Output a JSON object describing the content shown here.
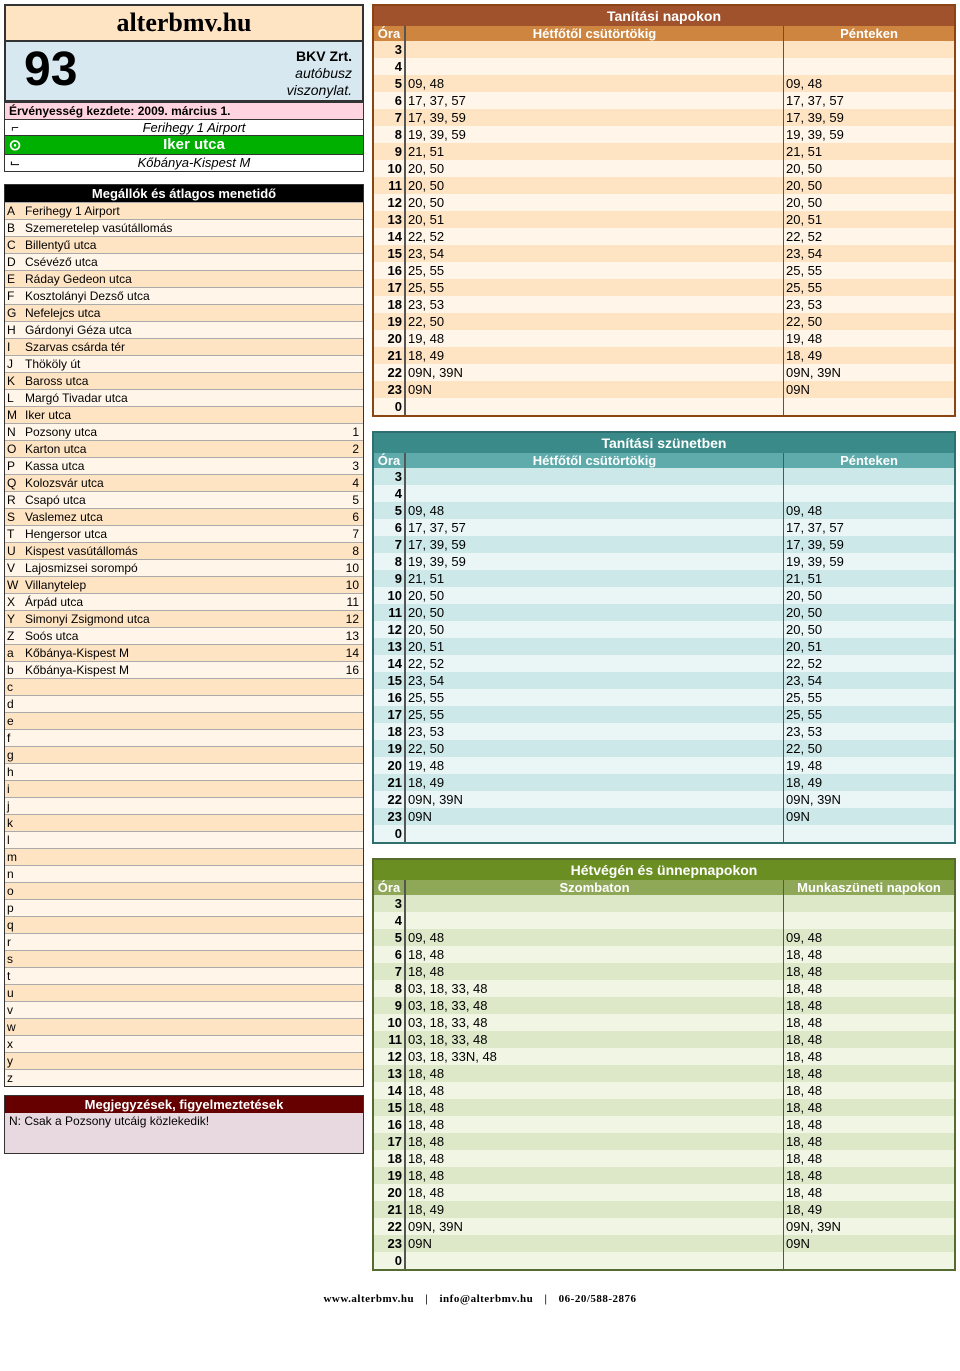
{
  "brand": "alterbmv.hu",
  "route_number": "93",
  "operator": "BKV Zrt.",
  "route_meta1": "autóbusz",
  "route_meta2": "viszonylat.",
  "validity": "Érvényesség kezdete:  2009. március 1.",
  "endpoints": {
    "start": {
      "symbol": "⌐",
      "name": "Ferihegy 1 Airport"
    },
    "current": {
      "symbol": "⊙",
      "name": "Iker utca"
    },
    "end": {
      "symbol": "⌙",
      "name": "Kőbánya-Kispest M"
    }
  },
  "stops_title": "Megállók és átlagos menetidő",
  "stops": [
    {
      "l": "A",
      "n": "Ferihegy 1 Airport",
      "m": ""
    },
    {
      "l": "B",
      "n": "Szemeretelep vasútállomás",
      "m": ""
    },
    {
      "l": "C",
      "n": "Billentyű utca",
      "m": ""
    },
    {
      "l": "D",
      "n": "Csévéző utca",
      "m": ""
    },
    {
      "l": "E",
      "n": "Ráday Gedeon utca",
      "m": ""
    },
    {
      "l": "F",
      "n": "Kosztolányi Dezső utca",
      "m": ""
    },
    {
      "l": "G",
      "n": "Nefelejcs utca",
      "m": ""
    },
    {
      "l": "H",
      "n": "Gárdonyi Géza utca",
      "m": ""
    },
    {
      "l": "I",
      "n": "Szarvas csárda tér",
      "m": ""
    },
    {
      "l": "J",
      "n": "Thököly út",
      "m": ""
    },
    {
      "l": "K",
      "n": "Baross utca",
      "m": ""
    },
    {
      "l": "L",
      "n": "Margó Tivadar utca",
      "m": ""
    },
    {
      "l": "M",
      "n": "Iker utca",
      "m": ""
    },
    {
      "l": "N",
      "n": "Pozsony utca",
      "m": "1"
    },
    {
      "l": "O",
      "n": "Karton utca",
      "m": "2"
    },
    {
      "l": "P",
      "n": "Kassa utca",
      "m": "3"
    },
    {
      "l": "Q",
      "n": "Kolozsvár utca",
      "m": "4"
    },
    {
      "l": "R",
      "n": "Csapó utca",
      "m": "5"
    },
    {
      "l": "S",
      "n": "Vaslemez utca",
      "m": "6"
    },
    {
      "l": "T",
      "n": "Hengersor utca",
      "m": "7"
    },
    {
      "l": "U",
      "n": "Kispest vasútállomás",
      "m": "8"
    },
    {
      "l": "V",
      "n": "Lajosmizsei sorompó",
      "m": "10"
    },
    {
      "l": "W",
      "n": "Villanytelep",
      "m": "10"
    },
    {
      "l": "X",
      "n": "Árpád utca",
      "m": "11"
    },
    {
      "l": "Y",
      "n": "Simonyi Zsigmond utca",
      "m": "12"
    },
    {
      "l": "Z",
      "n": "Soós utca",
      "m": "13"
    },
    {
      "l": "a",
      "n": "Kőbánya-Kispest M",
      "m": "14"
    },
    {
      "l": "b",
      "n": "Kőbánya-Kispest M",
      "m": "16"
    },
    {
      "l": "c",
      "n": "",
      "m": ""
    },
    {
      "l": "d",
      "n": "",
      "m": ""
    },
    {
      "l": "e",
      "n": "",
      "m": ""
    },
    {
      "l": "f",
      "n": "",
      "m": ""
    },
    {
      "l": "g",
      "n": "",
      "m": ""
    },
    {
      "l": "h",
      "n": "",
      "m": ""
    },
    {
      "l": "i",
      "n": "",
      "m": ""
    },
    {
      "l": "j",
      "n": "",
      "m": ""
    },
    {
      "l": "k",
      "n": "",
      "m": ""
    },
    {
      "l": "l",
      "n": "",
      "m": ""
    },
    {
      "l": "m",
      "n": "",
      "m": ""
    },
    {
      "l": "n",
      "n": "",
      "m": ""
    },
    {
      "l": "o",
      "n": "",
      "m": ""
    },
    {
      "l": "p",
      "n": "",
      "m": ""
    },
    {
      "l": "q",
      "n": "",
      "m": ""
    },
    {
      "l": "r",
      "n": "",
      "m": ""
    },
    {
      "l": "s",
      "n": "",
      "m": ""
    },
    {
      "l": "t",
      "n": "",
      "m": ""
    },
    {
      "l": "u",
      "n": "",
      "m": ""
    },
    {
      "l": "v",
      "n": "",
      "m": ""
    },
    {
      "l": "w",
      "n": "",
      "m": ""
    },
    {
      "l": "x",
      "n": "",
      "m": ""
    },
    {
      "l": "y",
      "n": "",
      "m": ""
    },
    {
      "l": "z",
      "n": "",
      "m": ""
    }
  ],
  "notes_title": "Megjegyzések, figyelmeztetések",
  "notes_body": "N: Csak a Pozsony utcáig közlekedik!",
  "timetables": [
    {
      "title": "Tanítási napokon",
      "head_ora": "Óra",
      "head_c1": "Hétfőtől csütörtökig",
      "head_c2": "Pénteken",
      "colors": {
        "border": "#8b4513",
        "title_bg": "#a0522d",
        "head_bg": "#cd853f",
        "row0": "#ffe4c4",
        "row1": "#fff5e8"
      },
      "rows": [
        {
          "h": "3",
          "c1": "",
          "c2": ""
        },
        {
          "h": "4",
          "c1": "",
          "c2": ""
        },
        {
          "h": "5",
          "c1": "09, 48",
          "c2": "09, 48"
        },
        {
          "h": "6",
          "c1": "17, 37, 57",
          "c2": "17, 37, 57"
        },
        {
          "h": "7",
          "c1": "17, 39, 59",
          "c2": "17, 39, 59"
        },
        {
          "h": "8",
          "c1": "19, 39, 59",
          "c2": "19, 39, 59"
        },
        {
          "h": "9",
          "c1": "21, 51",
          "c2": "21, 51"
        },
        {
          "h": "10",
          "c1": "20, 50",
          "c2": "20, 50"
        },
        {
          "h": "11",
          "c1": "20, 50",
          "c2": "20, 50"
        },
        {
          "h": "12",
          "c1": "20, 50",
          "c2": "20, 50"
        },
        {
          "h": "13",
          "c1": "20, 51",
          "c2": "20, 51"
        },
        {
          "h": "14",
          "c1": "22, 52",
          "c2": "22, 52"
        },
        {
          "h": "15",
          "c1": "23, 54",
          "c2": "23, 54"
        },
        {
          "h": "16",
          "c1": "25, 55",
          "c2": "25, 55"
        },
        {
          "h": "17",
          "c1": "25, 55",
          "c2": "25, 55"
        },
        {
          "h": "18",
          "c1": "23, 53",
          "c2": "23, 53"
        },
        {
          "h": "19",
          "c1": "22, 50",
          "c2": "22, 50"
        },
        {
          "h": "20",
          "c1": "19, 48",
          "c2": "19, 48"
        },
        {
          "h": "21",
          "c1": "18, 49",
          "c2": "18, 49"
        },
        {
          "h": "22",
          "c1": "09N, 39N",
          "c2": "09N, 39N"
        },
        {
          "h": "23",
          "c1": "09N",
          "c2": "09N"
        },
        {
          "h": "0",
          "c1": "",
          "c2": ""
        }
      ]
    },
    {
      "title": "Tanítási szünetben",
      "head_ora": "Óra",
      "head_c1": "Hétfőtől csütörtökig",
      "head_c2": "Pénteken",
      "colors": {
        "border": "#2f6f6f",
        "title_bg": "#3a8a8a",
        "head_bg": "#5faaaa",
        "row0": "#cde8e8",
        "row1": "#eaf5f5"
      },
      "rows": [
        {
          "h": "3",
          "c1": "",
          "c2": ""
        },
        {
          "h": "4",
          "c1": "",
          "c2": ""
        },
        {
          "h": "5",
          "c1": "09, 48",
          "c2": "09, 48"
        },
        {
          "h": "6",
          "c1": "17, 37, 57",
          "c2": "17, 37, 57"
        },
        {
          "h": "7",
          "c1": "17, 39, 59",
          "c2": "17, 39, 59"
        },
        {
          "h": "8",
          "c1": "19, 39, 59",
          "c2": "19, 39, 59"
        },
        {
          "h": "9",
          "c1": "21, 51",
          "c2": "21, 51"
        },
        {
          "h": "10",
          "c1": "20, 50",
          "c2": "20, 50"
        },
        {
          "h": "11",
          "c1": "20, 50",
          "c2": "20, 50"
        },
        {
          "h": "12",
          "c1": "20, 50",
          "c2": "20, 50"
        },
        {
          "h": "13",
          "c1": "20, 51",
          "c2": "20, 51"
        },
        {
          "h": "14",
          "c1": "22, 52",
          "c2": "22, 52"
        },
        {
          "h": "15",
          "c1": "23, 54",
          "c2": "23, 54"
        },
        {
          "h": "16",
          "c1": "25, 55",
          "c2": "25, 55"
        },
        {
          "h": "17",
          "c1": "25, 55",
          "c2": "25, 55"
        },
        {
          "h": "18",
          "c1": "23, 53",
          "c2": "23, 53"
        },
        {
          "h": "19",
          "c1": "22, 50",
          "c2": "22, 50"
        },
        {
          "h": "20",
          "c1": "19, 48",
          "c2": "19, 48"
        },
        {
          "h": "21",
          "c1": "18, 49",
          "c2": "18, 49"
        },
        {
          "h": "22",
          "c1": "09N, 39N",
          "c2": "09N, 39N"
        },
        {
          "h": "23",
          "c1": "09N",
          "c2": "09N"
        },
        {
          "h": "0",
          "c1": "",
          "c2": ""
        }
      ]
    },
    {
      "title": "Hétvégén és ünnepnapokon",
      "head_ora": "Óra",
      "head_c1": "Szombaton",
      "head_c2": "Munkaszüneti napokon",
      "colors": {
        "border": "#556b2f",
        "title_bg": "#6b8e23",
        "head_bg": "#8fa858",
        "row0": "#dde8c8",
        "row1": "#f0f5e4"
      },
      "rows": [
        {
          "h": "3",
          "c1": "",
          "c2": ""
        },
        {
          "h": "4",
          "c1": "",
          "c2": ""
        },
        {
          "h": "5",
          "c1": "09, 48",
          "c2": "09, 48"
        },
        {
          "h": "6",
          "c1": "18, 48",
          "c2": "18, 48"
        },
        {
          "h": "7",
          "c1": "18, 48",
          "c2": "18, 48"
        },
        {
          "h": "8",
          "c1": "03, 18, 33, 48",
          "c2": "18, 48"
        },
        {
          "h": "9",
          "c1": "03, 18, 33, 48",
          "c2": "18, 48"
        },
        {
          "h": "10",
          "c1": "03, 18, 33, 48",
          "c2": "18, 48"
        },
        {
          "h": "11",
          "c1": "03, 18, 33, 48",
          "c2": "18, 48"
        },
        {
          "h": "12",
          "c1": "03, 18, 33N, 48",
          "c2": "18, 48"
        },
        {
          "h": "13",
          "c1": "18, 48",
          "c2": "18, 48"
        },
        {
          "h": "14",
          "c1": "18, 48",
          "c2": "18, 48"
        },
        {
          "h": "15",
          "c1": "18, 48",
          "c2": "18, 48"
        },
        {
          "h": "16",
          "c1": "18, 48",
          "c2": "18, 48"
        },
        {
          "h": "17",
          "c1": "18, 48",
          "c2": "18, 48"
        },
        {
          "h": "18",
          "c1": "18, 48",
          "c2": "18, 48"
        },
        {
          "h": "19",
          "c1": "18, 48",
          "c2": "18, 48"
        },
        {
          "h": "20",
          "c1": "18, 48",
          "c2": "18, 48"
        },
        {
          "h": "21",
          "c1": "18, 49",
          "c2": "18, 49"
        },
        {
          "h": "22",
          "c1": "09N, 39N",
          "c2": "09N, 39N"
        },
        {
          "h": "23",
          "c1": "09N",
          "c2": "09N"
        },
        {
          "h": "0",
          "c1": "",
          "c2": ""
        }
      ]
    }
  ],
  "footer": {
    "site": "www.alterbmv.hu",
    "email": "info@alterbmv.hu",
    "phone": "06-20/588-2876"
  }
}
